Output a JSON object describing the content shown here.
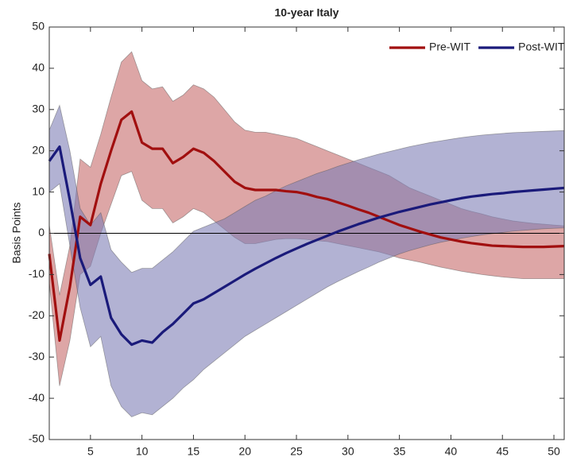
{
  "chart_data": {
    "type": "line",
    "title": "10-year Italy",
    "y_label": "Basis Points",
    "x": [
      1,
      2,
      3,
      4,
      5,
      6,
      7,
      8,
      9,
      10,
      11,
      12,
      13,
      14,
      15,
      16,
      17,
      18,
      19,
      20,
      21,
      22,
      23,
      24,
      25,
      26,
      27,
      28,
      29,
      30,
      31,
      32,
      33,
      34,
      35,
      36,
      37,
      38,
      39,
      40,
      41,
      42,
      43,
      44,
      45,
      46,
      47,
      48,
      49,
      50,
      51
    ],
    "xlim": [
      1,
      51
    ],
    "xticks": [
      5,
      10,
      15,
      20,
      25,
      30,
      35,
      40,
      45,
      50
    ],
    "ylim": [
      -50,
      50
    ],
    "yticks": [
      -50,
      -40,
      -30,
      -20,
      -10,
      0,
      10,
      20,
      30,
      40,
      50
    ],
    "legend": "upper right",
    "series": [
      {
        "name": "Pre-WIT",
        "color": "#a10f0f",
        "band_color": "#c76b6b",
        "values": [
          -5,
          -26,
          -13,
          4,
          2,
          12,
          20,
          27.5,
          29.5,
          22,
          20.5,
          20.5,
          17,
          18.5,
          20.5,
          19.5,
          17.5,
          15,
          12.5,
          11,
          10.5,
          10.5,
          10.5,
          10.2,
          10,
          9.5,
          8.8,
          8.3,
          7.5,
          6.7,
          5.8,
          5,
          4,
          3,
          2,
          1.2,
          0.4,
          -0.3,
          -1,
          -1.5,
          -2,
          -2.4,
          -2.7,
          -3,
          -3.1,
          -3.2,
          -3.3,
          -3.3,
          -3.3,
          -3.2,
          -3.1
        ],
        "upper": [
          2,
          -15,
          -3,
          18,
          16,
          24,
          33,
          41.5,
          44,
          37,
          35,
          35.5,
          32,
          33.5,
          36,
          35,
          33,
          30,
          27,
          25,
          24.5,
          24.5,
          24,
          23.5,
          23,
          22,
          21,
          20,
          19,
          18,
          17,
          16,
          15,
          14,
          12.5,
          11,
          10,
          9,
          8,
          7,
          6,
          5.3,
          4.7,
          4,
          3.5,
          3,
          2.7,
          2.4,
          2.2,
          2,
          1.8
        ],
        "lower": [
          -12,
          -37,
          -26,
          -10,
          -8,
          0,
          7,
          14,
          15,
          8,
          6,
          6,
          2.5,
          4,
          6,
          5,
          3,
          1,
          -1,
          -2.5,
          -2.5,
          -2,
          -1.5,
          -1.3,
          -1.3,
          -1.5,
          -1.8,
          -2,
          -2.5,
          -3,
          -3.5,
          -4,
          -4.5,
          -5.2,
          -6,
          -6.5,
          -7,
          -7.6,
          -8.2,
          -8.7,
          -9.2,
          -9.6,
          -10,
          -10.3,
          -10.6,
          -10.8,
          -11,
          -11,
          -11,
          -11,
          -11
        ]
      },
      {
        "name": "Post-WIT",
        "color": "#1a1a7a",
        "band_color": "#7f7fb5",
        "values": [
          17.5,
          21,
          8,
          -6,
          -12.5,
          -10.5,
          -20.5,
          -24.5,
          -27,
          -26,
          -26.5,
          -24,
          -22,
          -19.5,
          -17,
          -16,
          -14.5,
          -13,
          -11.5,
          -10,
          -8.6,
          -7.3,
          -6,
          -4.8,
          -3.7,
          -2.6,
          -1.6,
          -0.6,
          0.4,
          1.3,
          2.2,
          3,
          3.8,
          4.5,
          5.2,
          5.8,
          6.4,
          7,
          7.5,
          8,
          8.5,
          8.9,
          9.2,
          9.5,
          9.7,
          10,
          10.2,
          10.4,
          10.6,
          10.8,
          11
        ],
        "upper": [
          25,
          31,
          20,
          6,
          2,
          5,
          -4,
          -7,
          -9.5,
          -8.5,
          -8.5,
          -6.5,
          -4.5,
          -2,
          0.5,
          1.5,
          2.5,
          3.5,
          5,
          6.5,
          8,
          9,
          10.3,
          11.5,
          12.5,
          13.5,
          14.5,
          15.3,
          16.2,
          17,
          17.8,
          18.5,
          19.2,
          19.8,
          20.4,
          21,
          21.5,
          22,
          22.4,
          22.8,
          23.2,
          23.5,
          23.8,
          24,
          24.2,
          24.4,
          24.5,
          24.6,
          24.7,
          24.8,
          24.9
        ],
        "lower": [
          10,
          12,
          -3,
          -18,
          -27.5,
          -25,
          -37,
          -42,
          -44.5,
          -43.5,
          -44,
          -42,
          -40,
          -37.5,
          -35.5,
          -33,
          -31,
          -29,
          -27,
          -25,
          -23.5,
          -22,
          -20.5,
          -19,
          -17.5,
          -16,
          -14.5,
          -13,
          -11.7,
          -10.5,
          -9.3,
          -8.2,
          -7,
          -6,
          -5,
          -4.2,
          -3.5,
          -2.8,
          -2.2,
          -1.7,
          -1.2,
          -0.8,
          -0.4,
          -0.1,
          0.2,
          0.5,
          0.7,
          0.9,
          1.1,
          1.2,
          1.3
        ]
      }
    ]
  }
}
